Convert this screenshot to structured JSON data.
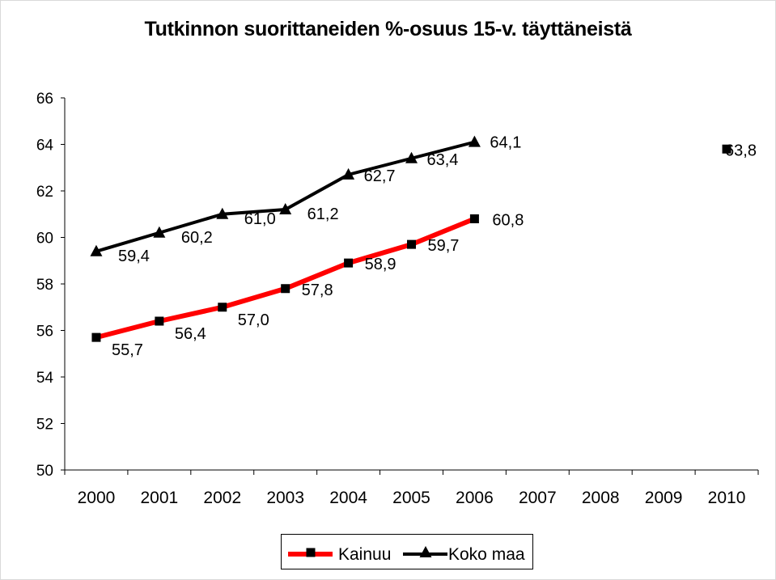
{
  "chart_data": {
    "type": "line",
    "title": "Tutkinnon suorittaneiden %-osuus 15-v. täyttäneistä",
    "xlabel": "",
    "ylabel": "",
    "categories": [
      "2000",
      "2001",
      "2002",
      "2003",
      "2004",
      "2005",
      "2006",
      "2007",
      "2008",
      "2009",
      "2010"
    ],
    "ylim": [
      50,
      66
    ],
    "yticks": [
      66,
      64,
      62,
      60,
      58,
      56,
      54,
      52,
      50
    ],
    "grid": false,
    "legend_position": "bottom",
    "series": [
      {
        "name": "Kainuu",
        "color": "#ff0000",
        "marker": "square",
        "values": [
          55.7,
          56.4,
          57.0,
          57.8,
          58.9,
          59.7,
          60.8,
          null,
          null,
          null,
          63.8
        ],
        "labels": [
          "55,7",
          "56,4",
          "57,0",
          "57,8",
          "58,9",
          "59,7",
          "60,8",
          null,
          null,
          null,
          "63,8"
        ]
      },
      {
        "name": "Koko maa",
        "color": "#000000",
        "marker": "triangle",
        "values": [
          59.4,
          60.2,
          61.0,
          61.2,
          62.7,
          63.4,
          64.1,
          null,
          null,
          null,
          null
        ],
        "labels": [
          "59,4",
          "60,2",
          "61,0",
          "61,2",
          "62,7",
          "63,4",
          "64,1",
          null,
          null,
          null,
          null
        ]
      }
    ]
  }
}
